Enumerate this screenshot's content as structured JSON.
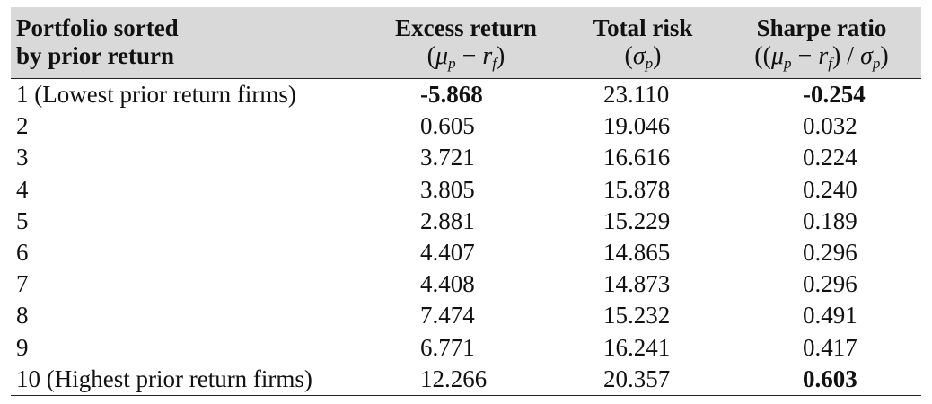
{
  "table": {
    "headers": {
      "col1_line1": "Portfolio sorted",
      "col1_line2": "by prior return",
      "col2_line1": "Excess return",
      "col3_line1": "Total risk",
      "col4_line1": "Sharpe ratio",
      "col2_formula": {
        "open": "(",
        "mu": "μ",
        "p": "p",
        "minus": " − ",
        "r": "r",
        "f": "f",
        "close": ")"
      },
      "col3_formula": {
        "open": "(",
        "sigma": "σ",
        "p": "p",
        "close": ")"
      },
      "col4_formula": {
        "open": "((",
        "mu": "μ",
        "p": "p",
        "minus": " − ",
        "r": "r",
        "f": "f",
        "mid": ") / ",
        "sigma": "σ",
        "p2": "p",
        "close": ")"
      }
    },
    "rows": [
      {
        "label": "1 (Lowest prior return firms)",
        "excess": "-5.868",
        "risk": "23.110",
        "sharpe": "-0.254",
        "excess_bold": true,
        "sharpe_bold": true
      },
      {
        "label": "2",
        "excess": "0.605",
        "risk": "19.046",
        "sharpe": "0.032",
        "excess_bold": false,
        "sharpe_bold": false
      },
      {
        "label": "3",
        "excess": "3.721",
        "risk": "16.616",
        "sharpe": "0.224",
        "excess_bold": false,
        "sharpe_bold": false
      },
      {
        "label": "4",
        "excess": "3.805",
        "risk": "15.878",
        "sharpe": "0.240",
        "excess_bold": false,
        "sharpe_bold": false
      },
      {
        "label": "5",
        "excess": "2.881",
        "risk": "15.229",
        "sharpe": "0.189",
        "excess_bold": false,
        "sharpe_bold": false
      },
      {
        "label": "6",
        "excess": "4.407",
        "risk": "14.865",
        "sharpe": "0.296",
        "excess_bold": false,
        "sharpe_bold": false
      },
      {
        "label": "7",
        "excess": "4.408",
        "risk": "14.873",
        "sharpe": "0.296",
        "excess_bold": false,
        "sharpe_bold": false
      },
      {
        "label": "8",
        "excess": "7.474",
        "risk": "15.232",
        "sharpe": "0.491",
        "excess_bold": false,
        "sharpe_bold": false
      },
      {
        "label": "9",
        "excess": "6.771",
        "risk": "16.241",
        "sharpe": "0.417",
        "excess_bold": false,
        "sharpe_bold": false
      },
      {
        "label": "10 (Highest prior return firms)",
        "excess": "12.266",
        "risk": "20.357",
        "sharpe": "0.603",
        "excess_bold": false,
        "sharpe_bold": true
      }
    ]
  },
  "colors": {
    "header_background": "#d9d9d9",
    "rule": "#222222",
    "text": "#111111"
  }
}
